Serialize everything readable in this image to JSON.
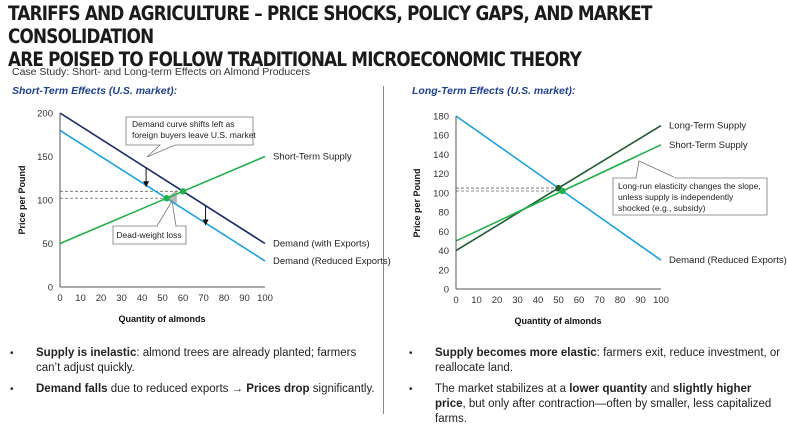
{
  "header": {
    "title_line1": "TARIFFS AND AGRICULTURE – PRICE SHOCKS, POLICY GAPS, AND MARKET CONSOLIDATION",
    "title_line2": "ARE POISED TO FOLLOW TRADITIONAL MICROECONOMIC THEORY",
    "subtitle": "Case Study: Short- and Long-term Effects on Almond Producers"
  },
  "left": {
    "heading": "Short-Term Effects (U.S. market):",
    "bullets": [
      {
        "bold": "Supply is inelastic",
        "rest": ": almond trees are already planted; farmers can’t adjust quickly."
      },
      {
        "bold": "Demand falls",
        "mid": " due to reduced exports → ",
        "bold2": "Prices drop",
        "rest": " significantly."
      }
    ]
  },
  "right": {
    "heading": "Long-Term Effects  (U.S. market):",
    "bullets": [
      {
        "bold": "Supply becomes more elastic",
        "rest": ": farmers exit, reduce investment, or reallocate land."
      },
      {
        "pre": "The market stabilizes at a ",
        "bold": "lower quantity",
        "mid": " and ",
        "bold2": "slightly higher price",
        "rest": ", but only after contraction—often by smaller, less capitalized farms."
      }
    ]
  },
  "colors": {
    "demand_with_exports": "#1a2a6c",
    "demand_reduced": "#1aa3e0",
    "short_term_supply": "#22b04a",
    "long_term_supply": "#1f5a32",
    "dwl": "#b8b8b8"
  },
  "chart_data": [
    {
      "type": "line",
      "title": "Short-Term Effects (U.S. market)",
      "xlabel": "Quantity of almonds",
      "ylabel": "Price per Pound",
      "xlim": [
        0,
        100
      ],
      "ylim": [
        0,
        200
      ],
      "xticks": [
        0,
        10,
        20,
        30,
        40,
        50,
        60,
        70,
        80,
        90,
        100
      ],
      "yticks": [
        0,
        50,
        100,
        150,
        200
      ],
      "grid": false,
      "series": [
        {
          "name": "Demand (with Exports)",
          "x": [
            0,
            100
          ],
          "y": [
            200,
            50
          ],
          "color_key": "demand_with_exports"
        },
        {
          "name": "Demand (Reduced Exports)",
          "x": [
            0,
            100
          ],
          "y": [
            180,
            30
          ],
          "color_key": "demand_reduced"
        },
        {
          "name": "Short-Term Supply",
          "x": [
            0,
            100
          ],
          "y": [
            50,
            150
          ],
          "color_key": "short_term_supply"
        }
      ],
      "equilibria": [
        {
          "x": 60,
          "y": 110,
          "label": "original equilibrium"
        },
        {
          "x": 52,
          "y": 102,
          "label": "new equilibrium"
        }
      ],
      "annotations": [
        {
          "text": "Demand curve shifts left as foreign buyers leave U.S. market",
          "points_to": [
            40,
            140
          ]
        },
        {
          "text": "Dead-weight loss",
          "points_to": [
            55,
            100
          ]
        }
      ],
      "shift_arrows": [
        {
          "x": 42,
          "from_y": 137,
          "to_y": 117
        },
        {
          "x": 71,
          "from_y": 93,
          "to_y": 73
        }
      ]
    },
    {
      "type": "line",
      "title": "Long-Term Effects (U.S. market)",
      "xlabel": "Quantity of almonds",
      "ylabel": "Price per Pound",
      "xlim": [
        0,
        100
      ],
      "ylim": [
        0,
        180
      ],
      "xticks": [
        0,
        10,
        20,
        30,
        40,
        50,
        60,
        70,
        80,
        90,
        100
      ],
      "yticks": [
        0,
        20,
        40,
        60,
        80,
        100,
        120,
        140,
        160,
        180
      ],
      "grid": false,
      "series": [
        {
          "name": "Long-Term Supply",
          "x": [
            0,
            100
          ],
          "y": [
            40,
            170
          ],
          "color_key": "long_term_supply"
        },
        {
          "name": "Short-Term Supply",
          "x": [
            0,
            100
          ],
          "y": [
            50,
            150
          ],
          "color_key": "short_term_supply"
        },
        {
          "name": "Demand (Reduced Exports)",
          "x": [
            0,
            100
          ],
          "y": [
            180,
            30
          ],
          "color_key": "demand_reduced"
        }
      ],
      "equilibria": [
        {
          "x": 50,
          "y": 105,
          "label": "long-term equilibrium"
        },
        {
          "x": 52,
          "y": 102,
          "label": "short-term equilibrium"
        }
      ],
      "annotations": [
        {
          "text": "Long-run elasticity changes the slope, unless supply is independently shocked (e.g., subsidy)",
          "points_to": [
            75,
            140
          ]
        }
      ]
    }
  ]
}
